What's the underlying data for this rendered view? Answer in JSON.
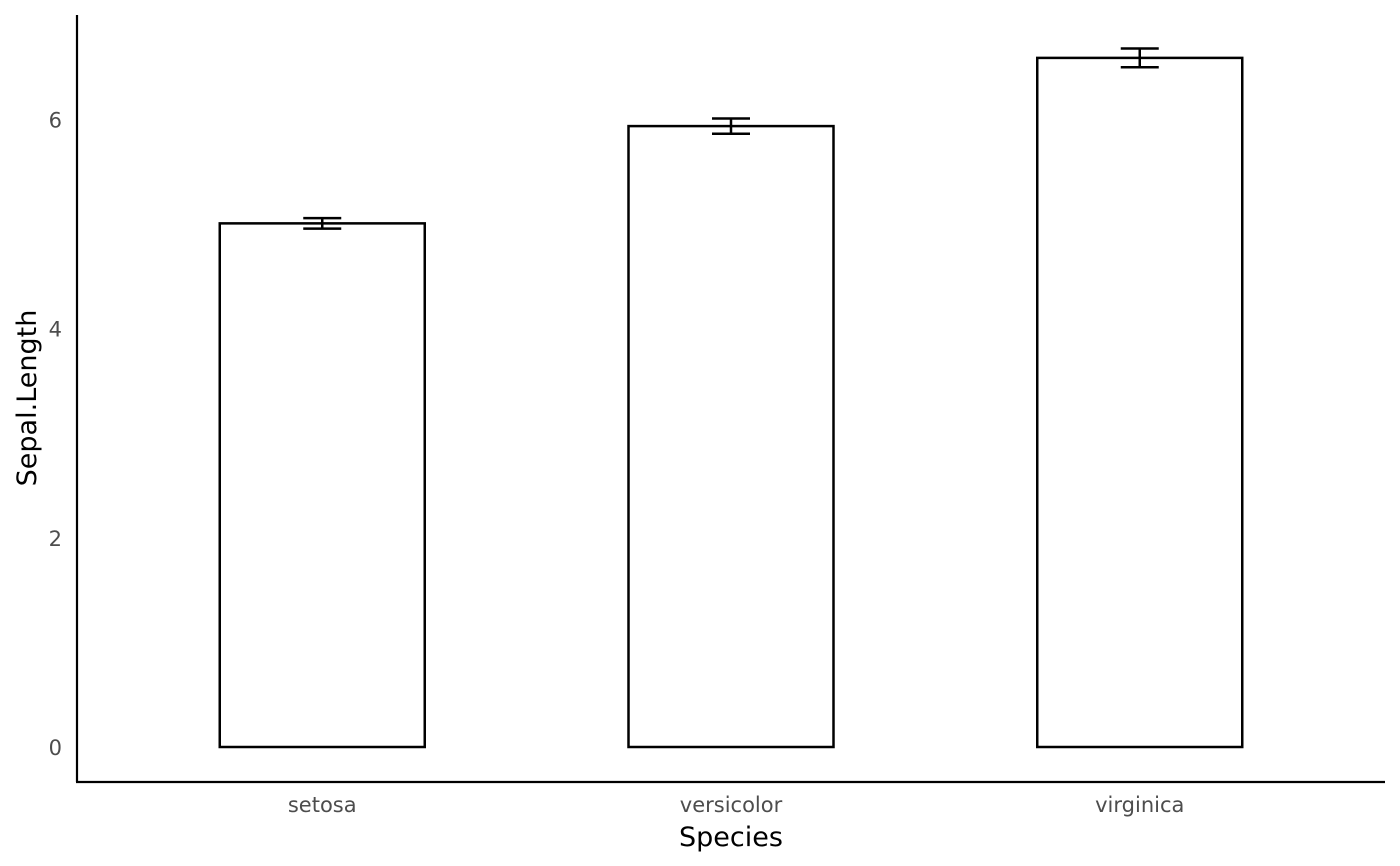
{
  "chart_data": {
    "type": "bar",
    "categories": [
      "setosa",
      "versicolor",
      "virginica"
    ],
    "values": [
      5.006,
      5.936,
      6.588
    ],
    "error": [
      0.05,
      0.073,
      0.09
    ],
    "xlabel": "Species",
    "ylabel": "Sepal.Length",
    "ylim": [
      -0.33,
      7.0
    ],
    "yticks": [
      0,
      2,
      4,
      6
    ],
    "grid": false,
    "bar_fill": "#ffffff",
    "bar_stroke": "#000000"
  }
}
